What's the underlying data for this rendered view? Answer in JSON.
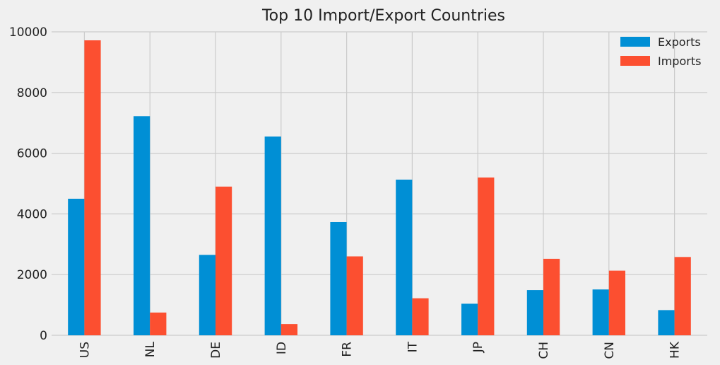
{
  "colors": {
    "background": "#f0f0f0",
    "grid": "#cbcbcb",
    "exports": "#008fd5",
    "imports": "#fc4f30",
    "text": "#222222"
  },
  "chart_data": {
    "type": "bar",
    "title": "Top 10 Import/Export Countries",
    "xlabel": "",
    "ylabel": "",
    "categories": [
      "US",
      "NL",
      "DE",
      "ID",
      "FR",
      "IT",
      "JP",
      "CH",
      "CN",
      "HK"
    ],
    "series": [
      {
        "name": "Exports",
        "values": [
          4500,
          7220,
          2650,
          6550,
          3730,
          5130,
          1040,
          1490,
          1510,
          830
        ]
      },
      {
        "name": "Imports",
        "values": [
          9720,
          750,
          4900,
          370,
          2600,
          1220,
          5200,
          2520,
          2130,
          2580
        ]
      }
    ],
    "ylim": [
      0,
      10000
    ],
    "yticks": [
      0,
      2000,
      4000,
      6000,
      8000,
      10000
    ],
    "grid": true,
    "legend": {
      "position": "top-right",
      "entries": [
        "Exports",
        "Imports"
      ]
    }
  }
}
